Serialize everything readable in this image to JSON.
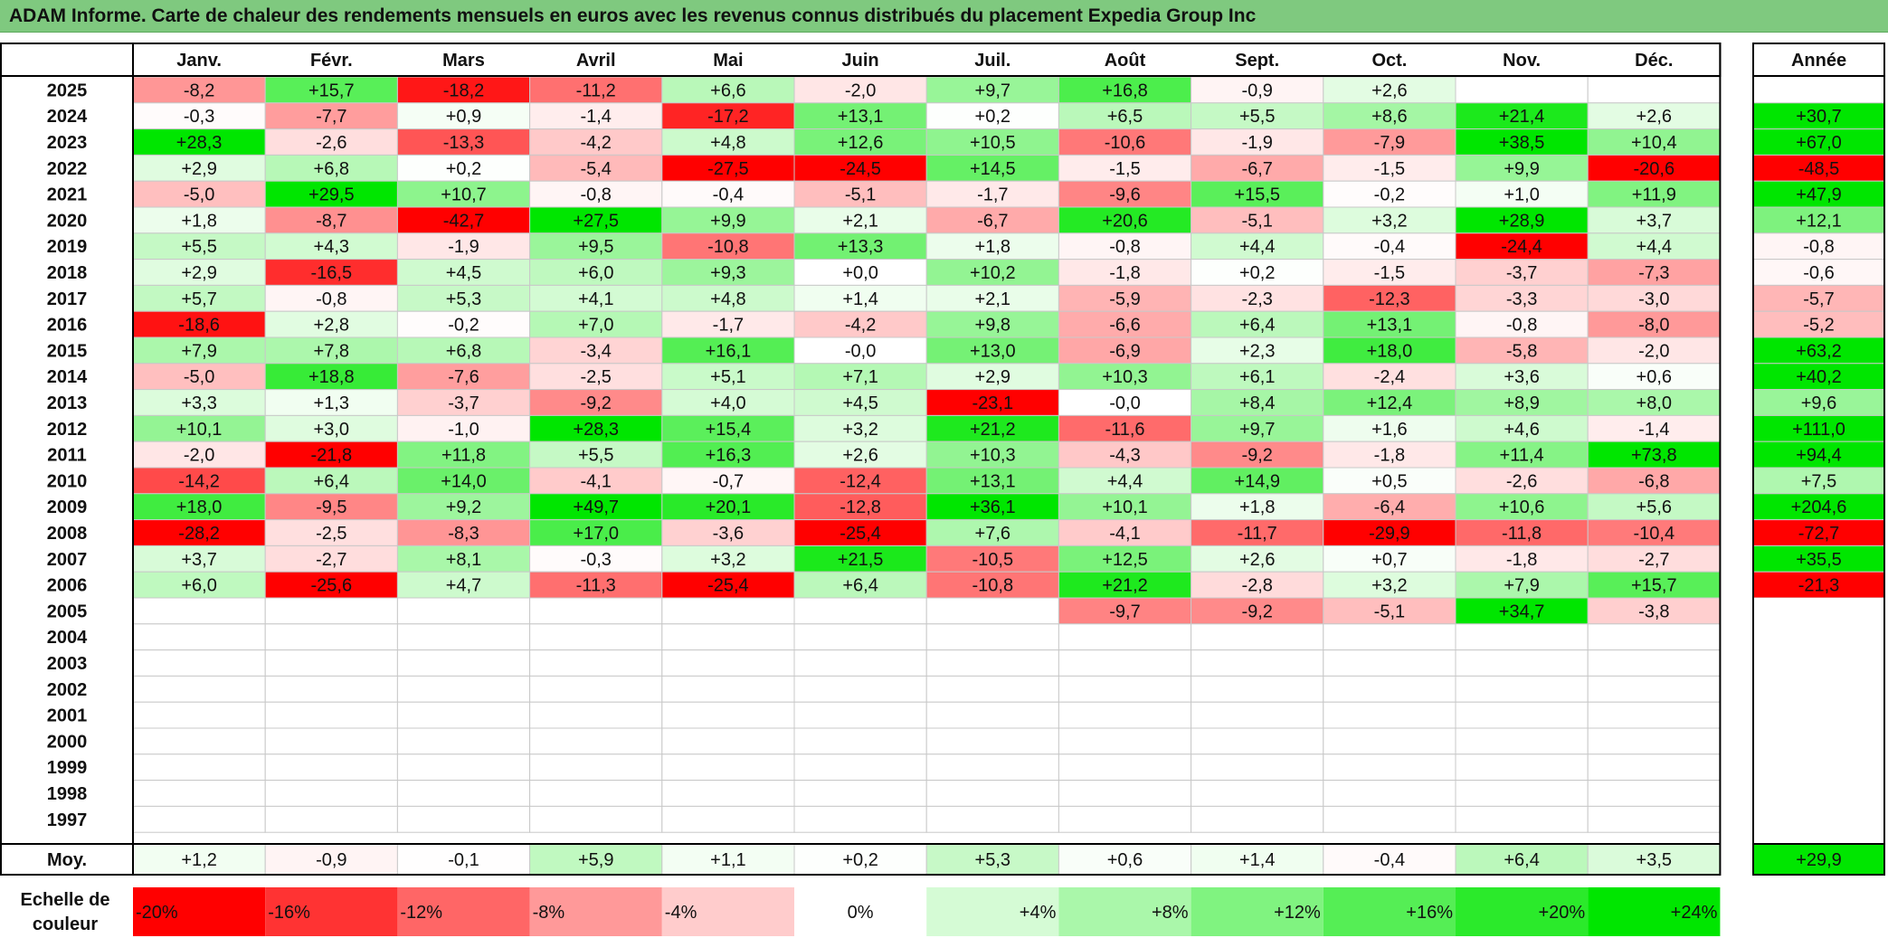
{
  "title": "ADAM Informe. Carte de chaleur des rendements mensuels en euros avec les revenus connus distribués du placement Expedia Group Inc",
  "chart_data": {
    "type": "heatmap",
    "title": "ADAM Informe. Carte de chaleur des rendements mensuels en euros avec les revenus connus distribués du placement Expedia Group Inc",
    "months": [
      "Janv.",
      "Févr.",
      "Mars",
      "Avril",
      "Mai",
      "Juin",
      "Juil.",
      "Août",
      "Sept.",
      "Oct.",
      "Nov.",
      "Déc."
    ],
    "annual_label": "Année",
    "years": [
      2025,
      2024,
      2023,
      2022,
      2021,
      2020,
      2019,
      2018,
      2017,
      2016,
      2015,
      2014,
      2013,
      2012,
      2011,
      2010,
      2009,
      2008,
      2007,
      2006,
      2005,
      2004,
      2003,
      2002,
      2001,
      2000,
      1999,
      1998,
      1997
    ],
    "values": [
      [
        -8.2,
        15.7,
        -18.2,
        -11.2,
        6.6,
        -2.0,
        9.7,
        16.8,
        -0.9,
        2.6,
        null,
        null
      ],
      [
        -0.3,
        -7.7,
        0.9,
        -1.4,
        -17.2,
        13.1,
        0.2,
        6.5,
        5.5,
        8.6,
        21.4,
        2.6
      ],
      [
        28.3,
        -2.6,
        -13.3,
        -4.2,
        4.8,
        12.6,
        10.5,
        -10.6,
        -1.9,
        -7.9,
        38.5,
        10.4
      ],
      [
        2.9,
        6.8,
        0.2,
        -5.4,
        -27.5,
        -24.5,
        14.5,
        -1.5,
        -6.7,
        -1.5,
        9.9,
        -20.6
      ],
      [
        -5.0,
        29.5,
        10.7,
        -0.8,
        -0.4,
        -5.1,
        -1.7,
        -9.6,
        15.5,
        -0.2,
        1.0,
        11.9
      ],
      [
        1.8,
        -8.7,
        -42.7,
        27.5,
        9.9,
        2.1,
        -6.7,
        20.6,
        -5.1,
        3.2,
        28.9,
        3.7
      ],
      [
        5.5,
        4.3,
        -1.9,
        9.5,
        -10.8,
        13.3,
        1.8,
        -0.8,
        4.4,
        -0.4,
        -24.4,
        4.4
      ],
      [
        2.9,
        -16.5,
        4.5,
        6.0,
        9.3,
        0.0,
        10.2,
        -1.8,
        0.2,
        -1.5,
        -3.7,
        -7.3
      ],
      [
        5.7,
        -0.8,
        5.3,
        4.1,
        4.8,
        1.4,
        2.1,
        -5.9,
        -2.3,
        -12.3,
        -3.3,
        -3.0
      ],
      [
        -18.6,
        2.8,
        -0.2,
        7.0,
        -1.7,
        -4.2,
        9.8,
        -6.6,
        6.4,
        13.1,
        -0.8,
        -8.0
      ],
      [
        7.9,
        7.8,
        6.8,
        -3.4,
        16.1,
        -0.0,
        13.0,
        -6.9,
        2.3,
        18.0,
        -5.8,
        -2.0
      ],
      [
        -5.0,
        18.8,
        -7.6,
        -2.5,
        5.1,
        7.1,
        2.9,
        10.3,
        6.1,
        -2.4,
        3.6,
        0.6
      ],
      [
        3.3,
        1.3,
        -3.7,
        -9.2,
        4.0,
        4.5,
        -23.1,
        -0.0,
        8.4,
        12.4,
        8.9,
        8.0
      ],
      [
        10.1,
        3.0,
        -1.0,
        28.3,
        15.4,
        3.2,
        21.2,
        -11.6,
        9.7,
        1.6,
        4.6,
        -1.4
      ],
      [
        -2.0,
        -21.8,
        11.8,
        5.5,
        16.3,
        2.6,
        10.3,
        -4.3,
        -9.2,
        -1.8,
        11.4,
        73.8
      ],
      [
        -14.2,
        6.4,
        14.0,
        -4.1,
        -0.7,
        -12.4,
        13.1,
        4.4,
        14.9,
        0.5,
        -2.6,
        -6.8
      ],
      [
        18.0,
        -9.5,
        9.2,
        49.7,
        20.1,
        -12.8,
        36.1,
        10.1,
        1.8,
        -6.4,
        10.6,
        5.6
      ],
      [
        -28.2,
        -2.5,
        -8.3,
        17.0,
        -3.6,
        -25.4,
        7.6,
        -4.1,
        -11.7,
        -29.9,
        -11.8,
        -10.4
      ],
      [
        3.7,
        -2.7,
        8.1,
        -0.3,
        3.2,
        21.5,
        -10.5,
        12.5,
        2.6,
        0.7,
        -1.8,
        -2.7
      ],
      [
        6.0,
        -25.6,
        4.7,
        -11.3,
        -25.4,
        6.4,
        -10.8,
        21.2,
        -2.8,
        3.2,
        7.9,
        15.7
      ],
      [
        null,
        null,
        null,
        null,
        null,
        null,
        null,
        -9.7,
        -9.2,
        -5.1,
        34.7,
        -3.8
      ],
      [
        null,
        null,
        null,
        null,
        null,
        null,
        null,
        null,
        null,
        null,
        null,
        null
      ],
      [
        null,
        null,
        null,
        null,
        null,
        null,
        null,
        null,
        null,
        null,
        null,
        null
      ],
      [
        null,
        null,
        null,
        null,
        null,
        null,
        null,
        null,
        null,
        null,
        null,
        null
      ],
      [
        null,
        null,
        null,
        null,
        null,
        null,
        null,
        null,
        null,
        null,
        null,
        null
      ],
      [
        null,
        null,
        null,
        null,
        null,
        null,
        null,
        null,
        null,
        null,
        null,
        null
      ],
      [
        null,
        null,
        null,
        null,
        null,
        null,
        null,
        null,
        null,
        null,
        null,
        null
      ],
      [
        null,
        null,
        null,
        null,
        null,
        null,
        null,
        null,
        null,
        null,
        null,
        null
      ],
      [
        null,
        null,
        null,
        null,
        null,
        null,
        null,
        null,
        null,
        null,
        null,
        null
      ]
    ],
    "annual": [
      null,
      30.7,
      67.0,
      -48.5,
      47.9,
      12.1,
      -0.8,
      -0.6,
      -5.7,
      -5.2,
      63.2,
      40.2,
      9.6,
      111.0,
      94.4,
      7.5,
      204.6,
      -72.7,
      35.5,
      -21.3,
      null,
      null,
      null,
      null,
      null,
      null,
      null,
      null,
      null
    ],
    "average_label": "Moy.",
    "average": [
      1.2,
      -0.9,
      -0.1,
      5.9,
      1.1,
      0.2,
      5.3,
      0.6,
      1.4,
      -0.4,
      6.4,
      3.5
    ],
    "average_annual": 29.9,
    "scale_label_line1": "Echelle de",
    "scale_label_line2": "couleur",
    "scale": [
      {
        "value": -20,
        "label": "-20%"
      },
      {
        "value": -16,
        "label": "-16%"
      },
      {
        "value": -12,
        "label": "-12%"
      },
      {
        "value": -8,
        "label": "-8%"
      },
      {
        "value": -4,
        "label": "-4%"
      },
      {
        "value": 0,
        "label": "0%"
      },
      {
        "value": 4,
        "label": "+4%"
      },
      {
        "value": 8,
        "label": "+8%"
      },
      {
        "value": 12,
        "label": "+12%"
      },
      {
        "value": 16,
        "label": "+16%"
      },
      {
        "value": 20,
        "label": "+20%"
      },
      {
        "value": 24,
        "label": "+24%"
      }
    ],
    "colors": {
      "negative_max": "#ff0000",
      "neutral": "#ffffff",
      "positive_max": "#00e600",
      "header_bar": "#7fc97f",
      "grid": "#c8c8c8",
      "border": "#000000"
    }
  }
}
